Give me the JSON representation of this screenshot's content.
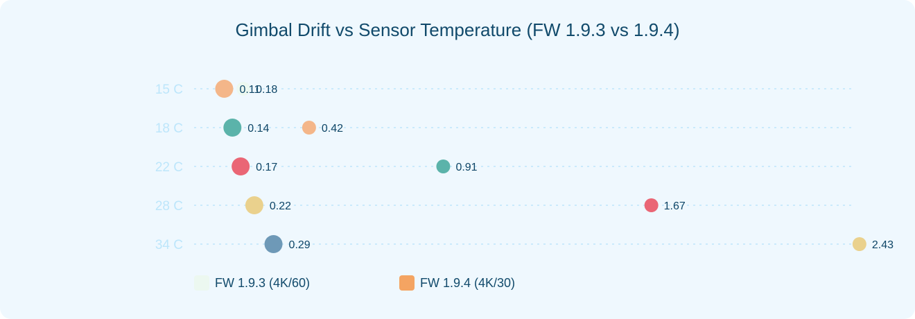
{
  "title": "Gimbal Drift vs Sensor Temperature (FW 1.9.3 vs 1.9.4)",
  "legend": [
    {
      "label": "FW 1.9.3 (4K/60)",
      "color": "#ecf8f0"
    },
    {
      "label": "FW 1.9.4 (4K/30)",
      "color": "#f4a462"
    }
  ],
  "palette": [
    "#ecf8f0",
    "#f4b689",
    "#5bb3aa",
    "#ea6675",
    "#ead18d",
    "#6e99b7"
  ],
  "chart_data": {
    "type": "scatter",
    "title": "Gimbal Drift vs Sensor Temperature (FW 1.9.3 vs 1.9.4)",
    "xlabel": "",
    "ylabel": "",
    "categories": [
      "15 C",
      "18 C",
      "22 C",
      "28 C",
      "34 C"
    ],
    "series": [
      {
        "name": "FW 1.9.3 (4K/60)",
        "values": [
          0.18,
          0.42,
          0.91,
          1.67,
          2.43
        ],
        "marker_size": "small"
      },
      {
        "name": "FW 1.9.4 (4K/30)",
        "values": [
          0.11,
          0.14,
          0.17,
          0.22,
          0.29
        ],
        "marker_size": "large"
      }
    ],
    "xlim": [
      0,
      2.43
    ],
    "grid": "horizontal dashed",
    "legend_position": "bottom-left",
    "data_labels": true
  }
}
